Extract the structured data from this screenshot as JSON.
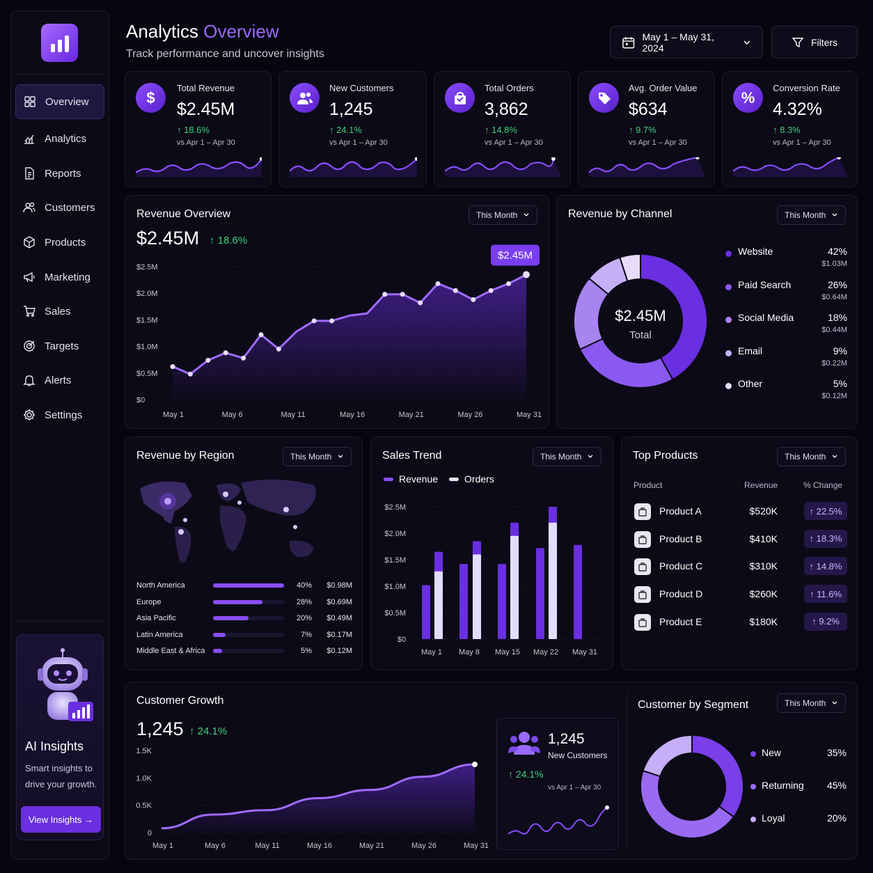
{
  "sidebar": {
    "nav": [
      {
        "label": "Overview",
        "icon": "grid-icon"
      },
      {
        "label": "Analytics",
        "icon": "analytics-icon"
      },
      {
        "label": "Reports",
        "icon": "document-icon"
      },
      {
        "label": "Customers",
        "icon": "users-icon"
      },
      {
        "label": "Products",
        "icon": "box-icon"
      },
      {
        "label": "Marketing",
        "icon": "megaphone-icon"
      },
      {
        "label": "Sales",
        "icon": "cart-icon"
      },
      {
        "label": "Targets",
        "icon": "target-icon"
      },
      {
        "label": "Alerts",
        "icon": "bell-icon"
      },
      {
        "label": "Settings",
        "icon": "gear-icon"
      }
    ],
    "ai": {
      "title": "AI Insights",
      "description": "Smart insights to drive your growth.",
      "button": "View Insights →"
    }
  },
  "header": {
    "title_main": "Analytics ",
    "title_accent": "Overview",
    "subtitle": "Track performance and uncover insights",
    "date_range": "May 1 – May 31, 2024",
    "filters": "Filters"
  },
  "colors": {
    "accent": "#8a4dff",
    "positive": "#3ed17a",
    "background": "#07050f"
  },
  "kpis": [
    {
      "label": "Total Revenue",
      "value": "$2.45M",
      "change": "↑ 18.6%",
      "compare": "vs Apr 1 – Apr 30",
      "icon": "$"
    },
    {
      "label": "New Customers",
      "value": "1,245",
      "change": "↑ 24.1%",
      "compare": "vs Apr 1 – Apr 30",
      "icon": "users"
    },
    {
      "label": "Total Orders",
      "value": "3,862",
      "change": "↑ 14.8%",
      "compare": "vs Apr 1 – Apr 30",
      "icon": "bag"
    },
    {
      "label": "Avg. Order Value",
      "value": "$634",
      "change": "↑ 9.7%",
      "compare": "vs Apr 1 – Apr 30",
      "icon": "tag"
    },
    {
      "label": "Conversion Rate",
      "value": "4.32%",
      "change": "↑ 8.3%",
      "compare": "vs Apr 1 – Apr 30",
      "icon": "%"
    }
  ],
  "revenue_overview": {
    "title": "Revenue Overview",
    "period": "This Month",
    "value": "$2.45M",
    "change": "↑ 18.6%",
    "callout": "$2.45M"
  },
  "channel": {
    "title": "Revenue by Channel",
    "period": "This Month",
    "center_value": "$2.45M",
    "center_label": "Total",
    "items": [
      {
        "name": "Website",
        "pct": "42%",
        "amount": "$1.03M",
        "color": "#6a2fe0"
      },
      {
        "name": "Paid Search",
        "pct": "26%",
        "amount": "$0.64M",
        "color": "#8a5af0"
      },
      {
        "name": "Social Media",
        "pct": "18%",
        "amount": "$0.44M",
        "color": "#a884f0"
      },
      {
        "name": "Email",
        "pct": "9%",
        "amount": "$0.22M",
        "color": "#c6b0f5"
      },
      {
        "name": "Other",
        "pct": "5%",
        "amount": "$0.12M",
        "color": "#e6dcfb"
      }
    ]
  },
  "region": {
    "title": "Revenue by Region",
    "period": "This Month",
    "rows": [
      {
        "name": "North America",
        "pct": "40%",
        "amount": "$0.98M",
        "share": 0.4
      },
      {
        "name": "Europe",
        "pct": "28%",
        "amount": "$0.69M",
        "share": 0.28
      },
      {
        "name": "Asia Pacific",
        "pct": "20%",
        "amount": "$0.49M",
        "share": 0.2
      },
      {
        "name": "Latin America",
        "pct": "7%",
        "amount": "$0.17M",
        "share": 0.07
      },
      {
        "name": "Middle East & Africa",
        "pct": "5%",
        "amount": "$0.12M",
        "share": 0.05
      }
    ]
  },
  "sales_trend": {
    "title": "Sales Trend",
    "period": "This Month",
    "legend_revenue": "Revenue",
    "legend_orders": "Orders"
  },
  "top_products": {
    "title": "Top Products",
    "period": "This Month",
    "headers": {
      "product": "Product",
      "revenue": "Revenue",
      "change": "% Change"
    },
    "rows": [
      {
        "name": "Product A",
        "revenue": "$520K",
        "change": "↑ 22.5%"
      },
      {
        "name": "Product B",
        "revenue": "$410K",
        "change": "↑ 18.3%"
      },
      {
        "name": "Product C",
        "revenue": "$310K",
        "change": "↑ 14.8%"
      },
      {
        "name": "Product D",
        "revenue": "$260K",
        "change": "↑ 11.6%"
      },
      {
        "name": "Product E",
        "revenue": "$180K",
        "change": "↑ 9.2%"
      }
    ]
  },
  "customer_growth": {
    "title": "Customer Growth",
    "value": "1,245",
    "change": "↑ 24.1%",
    "mini_value": "1,245",
    "mini_label": "New Customers",
    "mini_change": "↑ 24.1%",
    "mini_compare": "vs Apr 1 – Apr 30"
  },
  "segment": {
    "title": "Customer by Segment",
    "period": "This Month",
    "items": [
      {
        "name": "New",
        "pct": "35%",
        "color": "#7a3fe8"
      },
      {
        "name": "Returning",
        "pct": "45%",
        "color": "#9a6af2"
      },
      {
        "name": "Loyal",
        "pct": "20%",
        "color": "#c6aef8"
      }
    ]
  },
  "chart_data": [
    {
      "type": "area",
      "title": "Revenue Overview",
      "x": [
        "May 1",
        "May 3",
        "May 5",
        "May 7",
        "May 9",
        "May 11",
        "May 13",
        "May 14",
        "May 15",
        "May 17",
        "May 18",
        "May 19",
        "May 20",
        "May 21",
        "May 22",
        "May 23",
        "May 25",
        "May 26",
        "May 27",
        "May 29",
        "May 31"
      ],
      "xticks": [
        "May 1",
        "May 6",
        "May 11",
        "May 16",
        "May 21",
        "May 26",
        "May 31"
      ],
      "values": [
        0.62,
        0.48,
        0.74,
        0.88,
        0.78,
        1.22,
        0.95,
        1.28,
        1.48,
        1.48,
        1.58,
        1.62,
        1.98,
        1.98,
        1.82,
        2.18,
        2.05,
        1.88,
        2.05,
        2.18,
        2.35
      ],
      "yticks": [
        "$0",
        "$0.5M",
        "$1.0M",
        "$1.5M",
        "$2.0M",
        "$2.5M"
      ],
      "ylim": [
        0,
        2.5
      ]
    },
    {
      "type": "pie",
      "title": "Revenue by Channel",
      "categories": [
        "Website",
        "Paid Search",
        "Social Media",
        "Email",
        "Other"
      ],
      "values": [
        42,
        26,
        18,
        9,
        5
      ]
    },
    {
      "type": "bar",
      "title": "Sales Trend",
      "categories": [
        "May 1",
        "May 4",
        "May 8",
        "May 11",
        "May 15",
        "May 18",
        "May 22",
        "May 25",
        "May 31"
      ],
      "xticks": [
        "May 1",
        "May 8",
        "May 15",
        "May 22",
        "May 31"
      ],
      "yticks": [
        "$0",
        "$0.5M",
        "$1.0M",
        "$1.5M",
        "$2.0M",
        "$2.5M"
      ],
      "ylim": [
        0,
        2.5
      ],
      "series": [
        {
          "name": "Revenue",
          "values": [
            1.02,
            1.65,
            1.42,
            1.85,
            1.42,
            2.2,
            1.72,
            2.5,
            1.78
          ]
        },
        {
          "name": "Orders",
          "values": [
            0,
            1.28,
            0,
            1.6,
            0,
            1.95,
            0,
            2.2,
            0
          ]
        }
      ]
    },
    {
      "type": "area",
      "title": "Customer Growth",
      "x": [
        "May 1",
        "May 6",
        "May 11",
        "May 16",
        "May 21",
        "May 26",
        "May 31"
      ],
      "values": [
        80,
        330,
        410,
        630,
        780,
        1020,
        1245
      ],
      "yticks": [
        "0",
        "0.5K",
        "1.0K",
        "1.5K"
      ],
      "ylim": [
        0,
        1500
      ]
    },
    {
      "type": "pie",
      "title": "Customer by Segment",
      "categories": [
        "New",
        "Returning",
        "Loyal"
      ],
      "values": [
        35,
        45,
        20
      ]
    }
  ]
}
